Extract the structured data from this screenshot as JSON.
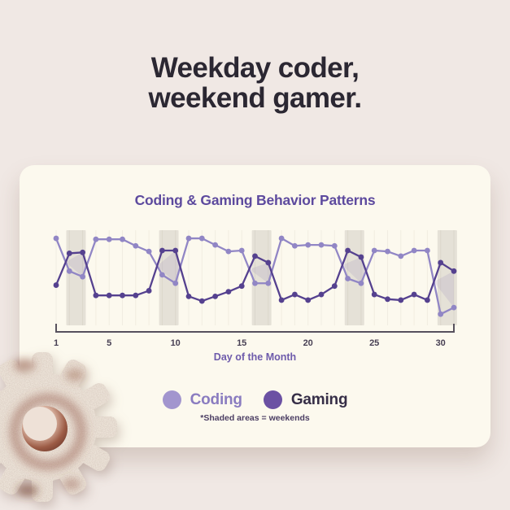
{
  "page": {
    "title_line1": "Weekday coder,",
    "title_line2": "weekend gamer."
  },
  "card": {
    "chart_title": "Coding & Gaming Behavior Patterns"
  },
  "chart_data": {
    "type": "line",
    "title": "Coding & Gaming Behavior Patterns",
    "xlabel": "Day of the Month",
    "x": [
      1,
      2,
      3,
      4,
      5,
      6,
      7,
      8,
      9,
      10,
      11,
      12,
      13,
      14,
      15,
      16,
      17,
      18,
      19,
      20,
      21,
      22,
      23,
      24,
      25,
      26,
      27,
      28,
      29,
      30,
      31
    ],
    "x_tick_labels": [
      1,
      5,
      10,
      15,
      20,
      25,
      30
    ],
    "ylim": [
      0,
      10
    ],
    "grid": "faint-vertical-per-day",
    "legend_position": "bottom",
    "series": [
      {
        "name": "Coding",
        "color": "#9186c5",
        "values": [
          9.3,
          5.8,
          5.2,
          9.2,
          9.2,
          9.2,
          8.5,
          7.9,
          5.4,
          4.5,
          9.3,
          9.3,
          8.6,
          7.9,
          8.0,
          4.5,
          4.5,
          9.3,
          8.5,
          8.6,
          8.6,
          8.5,
          5.0,
          4.5,
          8.0,
          7.9,
          7.4,
          8.0,
          8.0,
          1.2,
          1.9
        ]
      },
      {
        "name": "Gaming",
        "color": "#55418f",
        "values": [
          4.3,
          7.7,
          7.8,
          3.2,
          3.2,
          3.2,
          3.2,
          3.7,
          8.0,
          8.0,
          3.1,
          2.6,
          3.1,
          3.6,
          4.2,
          7.4,
          6.7,
          2.7,
          3.3,
          2.7,
          3.3,
          4.2,
          8.0,
          7.3,
          3.3,
          2.8,
          2.7,
          3.3,
          2.7,
          6.7,
          5.8
        ]
      }
    ],
    "weekend_bands": [
      [
        2,
        3
      ],
      [
        9,
        10
      ],
      [
        16,
        17
      ],
      [
        23,
        24
      ],
      [
        30,
        31
      ]
    ],
    "band_color": "#e5e1d7",
    "between_fill_color": "rgba(124,106,176,0.14)",
    "axis_color": "#57515d",
    "note": "*Shaded areas = weekends"
  },
  "legend": {
    "items": [
      {
        "label": "Coding",
        "dot_color": "#a295ce",
        "text_color": "#8a7cc0"
      },
      {
        "label": "Gaming",
        "dot_color": "#6b51a3",
        "text_color": "#362e47"
      }
    ],
    "note": "*Shaded areas = weekends"
  }
}
